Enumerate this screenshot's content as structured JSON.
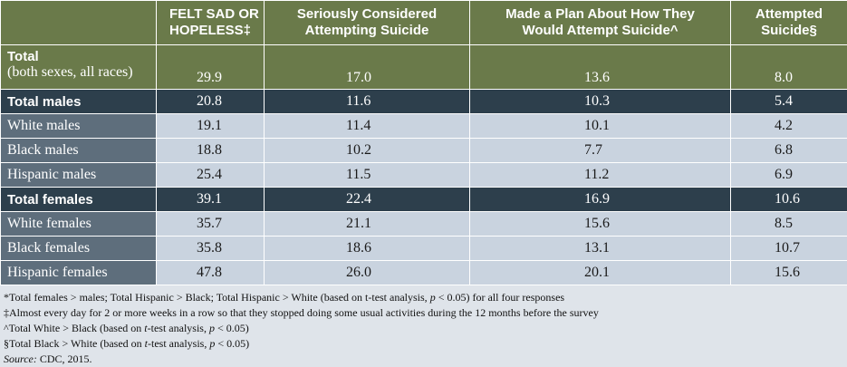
{
  "headers": [
    "FELT SAD OR HOPELESS‡",
    "Seriously Considered Attempting Suicide",
    "Made a Plan About How They Would Attempt Suicide^",
    "Attempted Suicide§"
  ],
  "header_lines": {
    "h1": [
      "FELT SAD OR",
      "HOPELESS‡"
    ],
    "h2": [
      "Seriously Considered",
      "Attempting Suicide"
    ],
    "h3": [
      "Made a Plan About How They",
      "Would Attempt Suicide^"
    ],
    "h4": [
      "Attempted",
      "Suicide§"
    ]
  },
  "total_all": {
    "label_bold": "Total",
    "label_sub": "(both sexes, all races)",
    "values": [
      "29.9",
      "17.0",
      "13.6",
      "8.0"
    ]
  },
  "rows": [
    {
      "label": "Total males",
      "values": [
        "20.8",
        "11.6",
        "10.3",
        "5.4"
      ],
      "kind": "band"
    },
    {
      "label": "White males",
      "values": [
        "19.1",
        "11.4",
        "10.1",
        "4.2"
      ],
      "kind": "sub"
    },
    {
      "label": "Black males",
      "values": [
        "18.8",
        "10.2",
        "7.7",
        "6.8"
      ],
      "kind": "sub"
    },
    {
      "label": "Hispanic males",
      "values": [
        "25.4",
        "11.5",
        "11.2",
        "6.9"
      ],
      "kind": "sub"
    },
    {
      "label": "Total females",
      "values": [
        "39.1",
        "22.4",
        "16.9",
        "10.6"
      ],
      "kind": "band"
    },
    {
      "label": "White females",
      "values": [
        "35.7",
        "21.1",
        "15.6",
        "8.5"
      ],
      "kind": "sub"
    },
    {
      "label": "Black females",
      "values": [
        "35.8",
        "18.6",
        "13.1",
        "10.7"
      ],
      "kind": "sub"
    },
    {
      "label": "Hispanic females",
      "values": [
        "47.8",
        "26.0",
        "20.1",
        "15.6"
      ],
      "kind": "sub"
    }
  ],
  "notes": {
    "n1a": "*Total females > males; Total Hispanic > Black; Total Hispanic > White (based on t-test analysis, ",
    "n1p": "p",
    "n1b": " < 0.05) for all four responses",
    "n2": "‡Almost every day for 2 or more weeks in a row so that they stopped doing some usual activities during the 12 months before the survey",
    "n3a": "^Total White > Black (based on ",
    "n3t": "t",
    "n3b": "-test analysis, ",
    "n3p": "p",
    "n3c": " < 0.05)",
    "n4a": "§Total Black > White (based on ",
    "n4t": "t",
    "n4b": "-test analysis, ",
    "n4p": "p",
    "n4c": " < 0.05)",
    "source_label": "Source:",
    "source_text": " CDC, 2015."
  }
}
